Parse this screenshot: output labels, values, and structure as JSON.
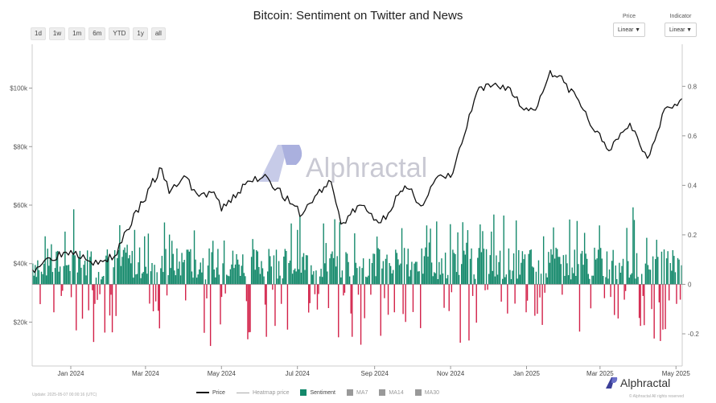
{
  "title": "Bitcoin: Sentiment on Twitter and News",
  "range_buttons": [
    "1d",
    "1w",
    "1m",
    "6m",
    "YTD",
    "1y",
    "all"
  ],
  "selectors": {
    "price": {
      "label": "Price",
      "value": "Linear"
    },
    "indicator": {
      "label": "Indicator",
      "value": "Linear"
    }
  },
  "legend": {
    "price": "Price",
    "heatmap": "Heatmap price",
    "sentiment": "Sentiment",
    "ma7": "MA7",
    "ma14": "MA14",
    "ma30": "MA30"
  },
  "watermark": "Alphractal",
  "footer": {
    "updated": "Update: 2025-05-07 00:00:16 (UTC)",
    "rights": "© Alphractal All rights reserved"
  },
  "colors": {
    "positive": "#14896b",
    "negative": "#d21f47",
    "price_line": "#111111"
  },
  "chart_data": {
    "type": "line+bar",
    "title": "Bitcoin: Sentiment on Twitter and News",
    "x_range": [
      "2023-12-01",
      "2025-05-06"
    ],
    "x_tick_labels": [
      "Jan 2024",
      "Mar 2024",
      "May 2024",
      "Jul 2024",
      "Sep 2024",
      "Nov 2024",
      "Jan 2025",
      "Mar 2025",
      "May 2025"
    ],
    "x_tick_dates": [
      "2024-01-01",
      "2024-03-01",
      "2024-05-01",
      "2024-07-01",
      "2024-09-01",
      "2024-11-01",
      "2025-01-01",
      "2025-03-01",
      "2025-05-01"
    ],
    "y_left": {
      "scale": "linear",
      "range": [
        5000,
        115000
      ],
      "ticks": [
        20000,
        40000,
        60000,
        80000,
        100000
      ],
      "tick_labels": [
        "$20k",
        "$40k",
        "$60k",
        "$80k",
        "$100k"
      ]
    },
    "y_right": {
      "scale": "linear",
      "range": [
        -0.33,
        0.97
      ],
      "ticks": [
        -0.2,
        0,
        0.2,
        0.4,
        0.6,
        0.8
      ],
      "tick_labels": [
        "-0.2",
        "0",
        "0.2",
        "0.4",
        "0.6",
        "0.8"
      ]
    },
    "grid": false,
    "legend_position": "bottom-center",
    "price_series": {
      "name": "Price",
      "x": [
        "2023-12-01",
        "2023-12-15",
        "2024-01-01",
        "2024-01-11",
        "2024-01-23",
        "2024-02-05",
        "2024-02-15",
        "2024-02-28",
        "2024-03-05",
        "2024-03-14",
        "2024-03-20",
        "2024-04-01",
        "2024-04-13",
        "2024-04-25",
        "2024-05-01",
        "2024-05-20",
        "2024-06-05",
        "2024-06-25",
        "2024-07-05",
        "2024-07-15",
        "2024-07-28",
        "2024-08-05",
        "2024-08-20",
        "2024-09-06",
        "2024-09-20",
        "2024-09-27",
        "2024-10-10",
        "2024-10-20",
        "2024-11-01",
        "2024-11-10",
        "2024-11-22",
        "2024-12-05",
        "2024-12-17",
        "2024-12-30",
        "2025-01-10",
        "2025-01-20",
        "2025-01-31",
        "2025-02-10",
        "2025-02-25",
        "2025-03-10",
        "2025-03-25",
        "2025-04-08",
        "2025-04-22",
        "2025-04-30",
        "2025-05-06"
      ],
      "y": [
        38000,
        42000,
        44500,
        43000,
        39800,
        42500,
        51500,
        61000,
        66500,
        72500,
        64000,
        70000,
        63000,
        64500,
        58000,
        67000,
        70500,
        60500,
        56800,
        63000,
        68000,
        53500,
        60000,
        54000,
        63500,
        65700,
        60000,
        69000,
        69500,
        81000,
        98500,
        101000,
        100500,
        92500,
        94000,
        106000,
        102000,
        97000,
        85000,
        79000,
        88000,
        76000,
        93000,
        94500,
        96500
      ]
    },
    "sentiment_series": {
      "name": "Sentiment",
      "period": "daily",
      "start": "2023-12-01",
      "values": []
    }
  }
}
